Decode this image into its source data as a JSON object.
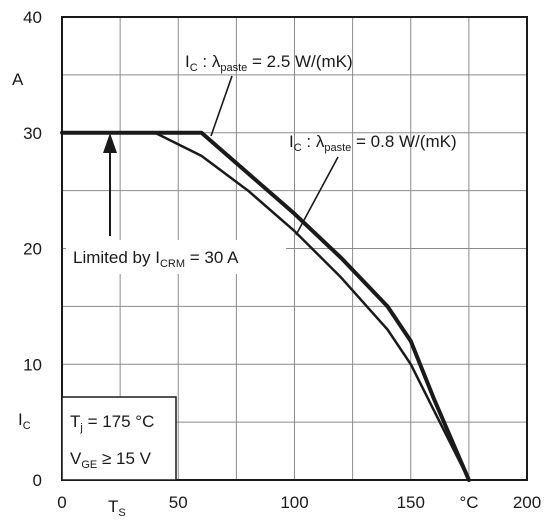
{
  "chart_data": {
    "type": "line",
    "xlim": [
      0,
      200
    ],
    "ylim": [
      0,
      40
    ],
    "x_ticks": [
      0,
      50,
      100,
      150,
      200
    ],
    "y_ticks": [
      0,
      10,
      20,
      30,
      40
    ],
    "grid": true,
    "y_unit": "A",
    "y_symbol": {
      "main": "I",
      "sub": "C"
    },
    "x_unit": "°C",
    "x_symbol": {
      "main": "T",
      "sub": "S"
    },
    "series": [
      {
        "name": "I_C : λ_paste = 2.5 W/(mK)",
        "color": "#1a1a1a",
        "x": [
          0,
          60,
          80,
          100,
          120,
          140,
          150,
          160,
          175
        ],
        "y": [
          30,
          30,
          26.5,
          23,
          19.2,
          15,
          12,
          7,
          0
        ]
      },
      {
        "name": "I_C : λ_paste = 0.8 W/(mK)",
        "color": "#1a1a1a",
        "x": [
          0,
          40,
          60,
          80,
          100,
          120,
          140,
          150,
          160,
          175
        ],
        "y": [
          30,
          30,
          28,
          25,
          21.5,
          17.5,
          13,
          10,
          6,
          0
        ]
      }
    ]
  },
  "labels": {
    "curve_high": {
      "main": "I",
      "sub1": "C",
      "mid": " : λ",
      "sub2": "paste",
      "tail": " = 2.5 W/(mK)"
    },
    "curve_low": {
      "main": "I",
      "sub1": "C",
      "mid": " : λ",
      "sub2": "paste",
      "tail": " = 0.8 W/(mK)"
    },
    "limited": {
      "pre": "Limited by I",
      "sub": "CRM",
      "tail": " = 30 A"
    },
    "conditions": [
      {
        "main": "T",
        "sub": "j",
        "tail": " = 175 °C"
      },
      {
        "main": "V",
        "sub": "GE",
        "tail": " ≥ 15 V"
      }
    ]
  }
}
